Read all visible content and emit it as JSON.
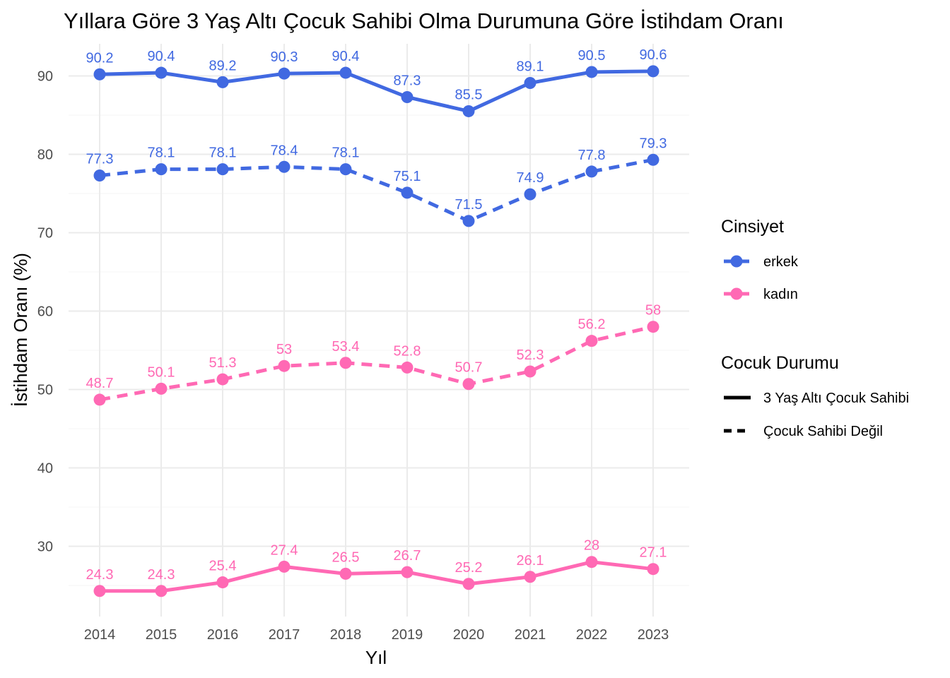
{
  "chart_data": {
    "type": "line",
    "title": "Yıllara Göre 3 Yaş Altı Çocuk Sahibi Olma Durumuna Göre İstihdam Oranı",
    "xlabel": "Yıl",
    "ylabel": "İstihdam Oranı (%)",
    "x": [
      "2014",
      "2015",
      "2016",
      "2017",
      "2018",
      "2019",
      "2020",
      "2021",
      "2022",
      "2023"
    ],
    "y_ticks": [
      "30",
      "40",
      "50",
      "60",
      "70",
      "80",
      "90"
    ],
    "ylim": [
      21,
      94
    ],
    "grid": true,
    "legend_position": "right",
    "legend": {
      "color_title": "Cinsiyet",
      "color_items": [
        {
          "label": "erkek",
          "color": "#4169E1"
        },
        {
          "label": "kadın",
          "color": "#FF69B4"
        }
      ],
      "linetype_title": "Cocuk Durumu",
      "linetype_items": [
        {
          "label": "3 Yaş Altı Çocuk Sahibi",
          "dash": "solid"
        },
        {
          "label": "Çocuk Sahibi Değil",
          "dash": "dashed"
        }
      ]
    },
    "series": [
      {
        "gender": "erkek",
        "child_status": "3 Yaş Altı Çocuk Sahibi",
        "color": "#4169E1",
        "dash": "solid",
        "values": [
          90.2,
          90.4,
          89.2,
          90.3,
          90.4,
          87.3,
          85.5,
          89.1,
          90.5,
          90.6
        ],
        "labels": [
          "90.2",
          "90.4",
          "89.2",
          "90.3",
          "90.4",
          "87.3",
          "85.5",
          "89.1",
          "90.5",
          "90.6"
        ]
      },
      {
        "gender": "erkek",
        "child_status": "Çocuk Sahibi Değil",
        "color": "#4169E1",
        "dash": "dashed",
        "values": [
          77.3,
          78.1,
          78.1,
          78.4,
          78.1,
          75.1,
          71.5,
          74.9,
          77.8,
          79.3
        ],
        "labels": [
          "77.3",
          "78.1",
          "78.1",
          "78.4",
          "78.1",
          "75.1",
          "71.5",
          "74.9",
          "77.8",
          "79.3"
        ]
      },
      {
        "gender": "kadın",
        "child_status": "Çocuk Sahibi Değil",
        "color": "#FF69B4",
        "dash": "dashed",
        "values": [
          48.7,
          50.1,
          51.3,
          53,
          53.4,
          52.8,
          50.7,
          52.3,
          56.2,
          58
        ],
        "labels": [
          "48.7",
          "50.1",
          "51.3",
          "53",
          "53.4",
          "52.8",
          "50.7",
          "52.3",
          "56.2",
          "58"
        ]
      },
      {
        "gender": "kadın",
        "child_status": "3 Yaş Altı Çocuk Sahibi",
        "color": "#FF69B4",
        "dash": "solid",
        "values": [
          24.3,
          24.3,
          25.4,
          27.4,
          26.5,
          26.7,
          25.2,
          26.1,
          28,
          27.1
        ],
        "labels": [
          "24.3",
          "24.3",
          "25.4",
          "27.4",
          "26.5",
          "26.7",
          "25.2",
          "26.1",
          "28",
          "27.1"
        ]
      }
    ]
  }
}
